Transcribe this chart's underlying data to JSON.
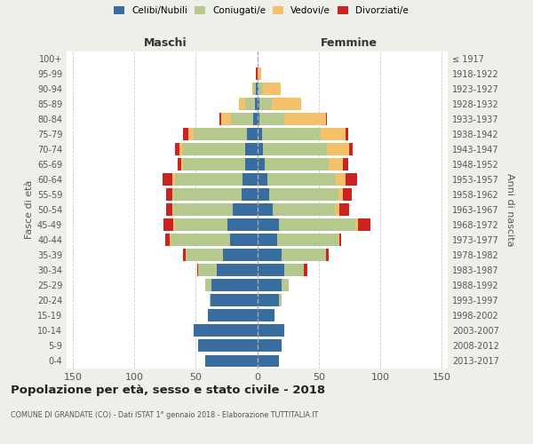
{
  "age_groups": [
    "0-4",
    "5-9",
    "10-14",
    "15-19",
    "20-24",
    "25-29",
    "30-34",
    "35-39",
    "40-44",
    "45-49",
    "50-54",
    "55-59",
    "60-64",
    "65-69",
    "70-74",
    "75-79",
    "80-84",
    "85-89",
    "90-94",
    "95-99",
    "100+"
  ],
  "birth_years": [
    "2013-2017",
    "2008-2012",
    "2003-2007",
    "1998-2002",
    "1993-1997",
    "1988-1992",
    "1983-1987",
    "1978-1982",
    "1973-1977",
    "1968-1972",
    "1963-1967",
    "1958-1962",
    "1953-1957",
    "1948-1952",
    "1943-1947",
    "1938-1942",
    "1933-1937",
    "1928-1932",
    "1923-1927",
    "1918-1922",
    "≤ 1917"
  ],
  "maschi": {
    "celibi": [
      42,
      48,
      52,
      40,
      38,
      37,
      33,
      28,
      22,
      24,
      20,
      13,
      12,
      10,
      10,
      8,
      3,
      2,
      1,
      0,
      0
    ],
    "coniugati": [
      0,
      0,
      0,
      0,
      1,
      5,
      15,
      30,
      48,
      43,
      48,
      55,
      55,
      50,
      50,
      44,
      18,
      8,
      2,
      0,
      0
    ],
    "vedovi": [
      0,
      0,
      0,
      0,
      0,
      0,
      0,
      0,
      1,
      1,
      1,
      1,
      2,
      2,
      3,
      4,
      8,
      5,
      1,
      0,
      0
    ],
    "divorziati": [
      0,
      0,
      0,
      0,
      0,
      0,
      1,
      2,
      4,
      8,
      5,
      5,
      8,
      3,
      4,
      4,
      2,
      0,
      0,
      1,
      0
    ]
  },
  "femmine": {
    "nubili": [
      18,
      20,
      22,
      14,
      18,
      20,
      22,
      20,
      16,
      18,
      13,
      10,
      8,
      6,
      5,
      4,
      2,
      2,
      1,
      0,
      0
    ],
    "coniugate": [
      0,
      0,
      0,
      0,
      2,
      6,
      16,
      36,
      50,
      62,
      50,
      56,
      56,
      52,
      52,
      48,
      20,
      10,
      4,
      1,
      0
    ],
    "vedove": [
      0,
      0,
      0,
      0,
      0,
      0,
      0,
      0,
      1,
      2,
      4,
      4,
      8,
      12,
      18,
      20,
      34,
      24,
      14,
      2,
      0
    ],
    "divorziate": [
      0,
      0,
      0,
      0,
      0,
      0,
      3,
      2,
      1,
      10,
      8,
      7,
      9,
      4,
      3,
      2,
      1,
      0,
      0,
      0,
      0
    ]
  },
  "colors": {
    "celibi": "#3a6d9f",
    "coniugati": "#b5c98e",
    "vedovi": "#f5c06a",
    "divorziati": "#cc2222"
  },
  "xlim": 155,
  "xticks": [
    -150,
    -100,
    -50,
    0,
    50,
    100,
    150
  ],
  "title": "Popolazione per età, sesso e stato civile - 2018",
  "subtitle": "COMUNE DI GRANDATE (CO) - Dati ISTAT 1° gennaio 2018 - Elaborazione TUTTITALIA.IT",
  "ylabel_left": "Fasce di età",
  "ylabel_right": "Anni di nascita",
  "xlabel_maschi": "Maschi",
  "xlabel_femmine": "Femmine",
  "bg_color": "#efefea",
  "plot_bg": "#ffffff",
  "legend_labels": [
    "Celibi/Nubili",
    "Coniugati/e",
    "Vedovi/e",
    "Divorziati/e"
  ]
}
